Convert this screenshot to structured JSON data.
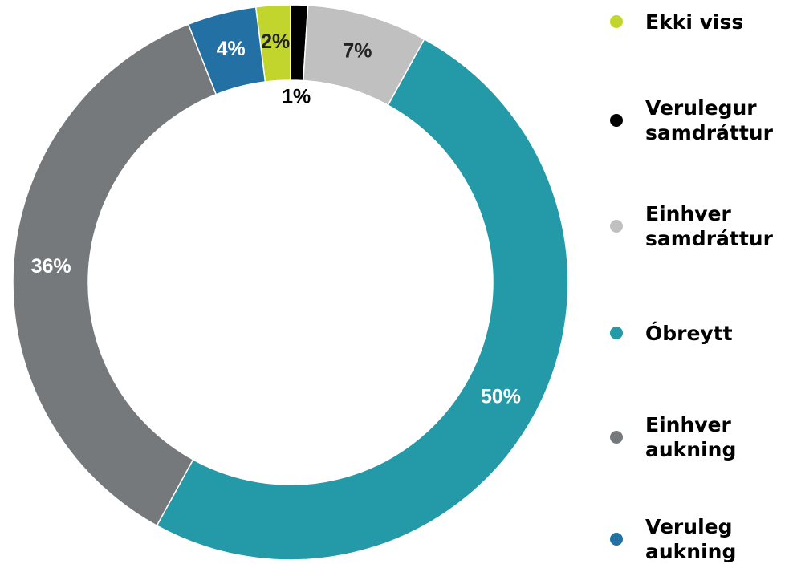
{
  "chart_data": {
    "type": "donut",
    "categories": [
      "Ekki viss",
      "Verulegur samdráttur",
      "Einhver samdráttur",
      "Óbreytt",
      "Einhver aukning",
      "Veruleg aukning"
    ],
    "values": [
      2,
      1,
      7,
      50,
      36,
      4
    ],
    "value_labels": [
      "2%",
      "1%",
      "7%",
      "50%",
      "36%",
      "4%"
    ],
    "colors": [
      "#c2d52c",
      "#000000",
      "#c0c0c0",
      "#2499a8",
      "#76797b",
      "#2270a4"
    ]
  }
}
